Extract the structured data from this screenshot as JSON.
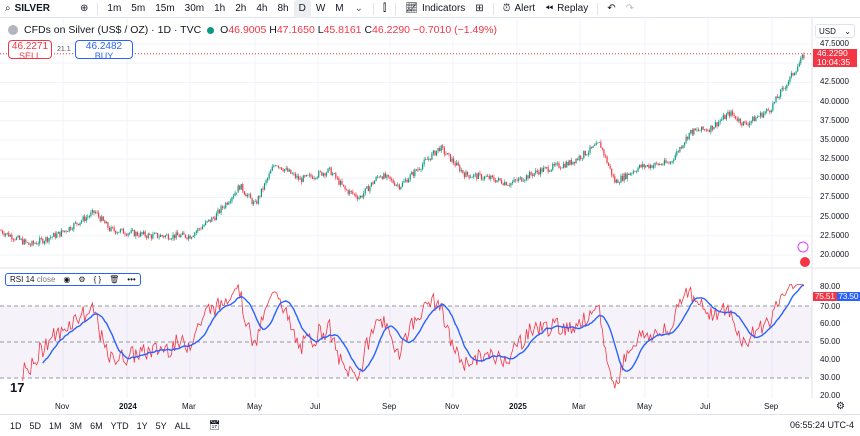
{
  "toolbar": {
    "symbol": "SILVER",
    "intervals": [
      "1m",
      "5m",
      "15m",
      "30m",
      "1h",
      "2h",
      "4h",
      "8h",
      "D",
      "W",
      "M"
    ],
    "active_interval": "D",
    "indicators": "Indicators",
    "alert": "Alert",
    "replay": "Replay"
  },
  "legend": {
    "title": "CFDs on Silver (US$ / OZ) · 1D · TVC",
    "o_label": "O",
    "o": "46.9005",
    "h_label": "H",
    "h": "47.1650",
    "l_label": "L",
    "l": "45.8161",
    "c_label": "C",
    "c": "46.2290",
    "change": "−0.7010 (−1.49%)"
  },
  "trade": {
    "sell_price": "46.2271",
    "sell_label": "SELL",
    "spread": "21.1",
    "buy_price": "46.2482",
    "buy_label": "BUY"
  },
  "price_axis": {
    "currency": "USD",
    "ticks": [
      "47.5000",
      "42.5000",
      "40.0000",
      "37.5000",
      "35.0000",
      "32.5000",
      "30.0000",
      "27.5000",
      "25.0000",
      "22.5000",
      "20.0000"
    ],
    "last_price": "46.2290",
    "countdown": "10:04:35"
  },
  "rsi": {
    "name": "RSI",
    "length": "14",
    "source": "close",
    "ticks": [
      "80.00",
      "70.00",
      "60.00",
      "50.00",
      "40.00",
      "30.00",
      "20.00"
    ],
    "rsi_value": "75.51",
    "ma_value": "73.50"
  },
  "time_axis": [
    "Nov",
    "2024",
    "Mar",
    "May",
    "Jul",
    "Sep",
    "Nov",
    "2025",
    "Mar",
    "May",
    "Jul",
    "Sep"
  ],
  "ranges": [
    "1D",
    "5D",
    "1M",
    "3M",
    "6M",
    "YTD",
    "1Y",
    "5Y",
    "ALL"
  ],
  "clock": "06:55:24 UTC-4",
  "colors": {
    "up": "#089981",
    "down": "#f23645",
    "rsi": "#f23645",
    "rsi_ma": "#2962ff",
    "band": "#7e57c2"
  },
  "price_path": [
    [
      0,
      23.2
    ],
    [
      30,
      21.3
    ],
    [
      60,
      22.8
    ],
    [
      95,
      25.6
    ],
    [
      110,
      23.3
    ],
    [
      150,
      22.5
    ],
    [
      190,
      22.5
    ],
    [
      215,
      25
    ],
    [
      240,
      29
    ],
    [
      255,
      26.5
    ],
    [
      275,
      32
    ],
    [
      300,
      29.8
    ],
    [
      330,
      31
    ],
    [
      345,
      28.5
    ],
    [
      360,
      27.5
    ],
    [
      380,
      30.5
    ],
    [
      400,
      29
    ],
    [
      420,
      31.5
    ],
    [
      440,
      34
    ],
    [
      465,
      30.5
    ],
    [
      490,
      30
    ],
    [
      510,
      29.3
    ],
    [
      540,
      31
    ],
    [
      570,
      32
    ],
    [
      600,
      34.5
    ],
    [
      615,
      29.5
    ],
    [
      640,
      31.5
    ],
    [
      670,
      32
    ],
    [
      690,
      36
    ],
    [
      710,
      36.5
    ],
    [
      730,
      38.5
    ],
    [
      745,
      37
    ],
    [
      770,
      39
    ],
    [
      790,
      43
    ],
    [
      805,
      46.2
    ]
  ]
}
